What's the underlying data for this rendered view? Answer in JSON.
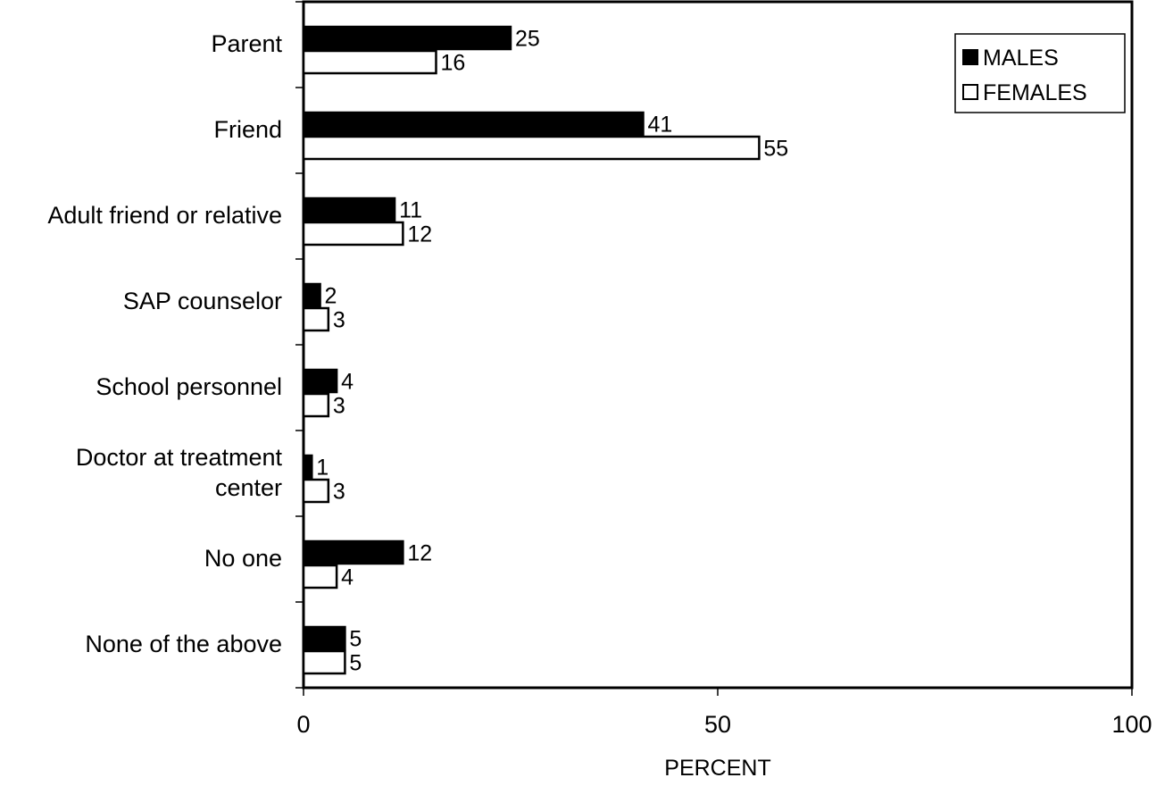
{
  "chart_data": {
    "type": "bar",
    "orientation": "horizontal",
    "title": "",
    "xlabel": "PERCENT",
    "ylabel": "",
    "xlim": [
      0,
      100
    ],
    "xticks": [
      0,
      50,
      100
    ],
    "xtick_labels": [
      "0",
      "50",
      "100"
    ],
    "grid": false,
    "legend_position": "top-right",
    "categories": [
      [
        "Parent"
      ],
      [
        "Friend"
      ],
      [
        "Adult friend or relative"
      ],
      [
        "SAP counselor"
      ],
      [
        "School personnel"
      ],
      [
        "Doctor at treatment",
        "center"
      ],
      [
        "No one"
      ],
      [
        "None of the above"
      ]
    ],
    "series": [
      {
        "name": "MALES",
        "color": "#000000",
        "fill": "#000000",
        "values": [
          25,
          41,
          11,
          2,
          4,
          1,
          12,
          5
        ]
      },
      {
        "name": "FEMALES",
        "color": "#000000",
        "fill": "#ffffff",
        "values": [
          16,
          55,
          12,
          3,
          3,
          3,
          4,
          5
        ]
      }
    ]
  }
}
